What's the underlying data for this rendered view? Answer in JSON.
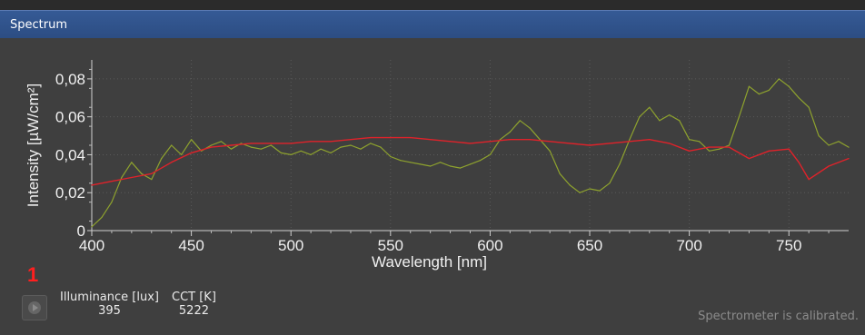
{
  "panel": {
    "title": "Spectrum"
  },
  "metrics": [
    {
      "label": "Illuminance [lux]",
      "value": "395"
    },
    {
      "label": "CCT [K]",
      "value": "5222"
    }
  ],
  "marker_label": "1",
  "status": "Spectrometer is calibrated.",
  "colors": {
    "title_bar": "#2f5189",
    "background": "#3f3f3f",
    "series_measured": "#8ea22e",
    "series_reference": "#e0222a",
    "marker": "#ff1f1f"
  },
  "chart_data": {
    "type": "line",
    "xlabel": "Wavelength [nm]",
    "ylabel": "Intensity [µW/cm²]",
    "xlim": [
      400,
      780
    ],
    "ylim": [
      0,
      0.09
    ],
    "x_ticks": [
      "400",
      "450",
      "500",
      "550",
      "600",
      "650",
      "700",
      "750"
    ],
    "y_ticks": [
      "0",
      "0,02",
      "0,04",
      "0,06",
      "0,08"
    ],
    "grid": true,
    "series": [
      {
        "color": "#8ea22e",
        "x": [
          400,
          405,
          410,
          415,
          420,
          425,
          430,
          435,
          440,
          445,
          450,
          455,
          460,
          465,
          470,
          475,
          480,
          485,
          490,
          495,
          500,
          505,
          510,
          515,
          520,
          525,
          530,
          535,
          540,
          545,
          550,
          555,
          560,
          565,
          570,
          575,
          580,
          585,
          590,
          595,
          600,
          605,
          610,
          615,
          620,
          625,
          630,
          635,
          640,
          645,
          650,
          655,
          660,
          665,
          670,
          675,
          680,
          685,
          690,
          695,
          700,
          705,
          710,
          715,
          720,
          725,
          730,
          735,
          740,
          745,
          750,
          755,
          760,
          765,
          770,
          775,
          780
        ],
        "y": [
          0.002,
          0.007,
          0.015,
          0.028,
          0.036,
          0.03,
          0.027,
          0.038,
          0.045,
          0.04,
          0.048,
          0.042,
          0.045,
          0.047,
          0.043,
          0.046,
          0.044,
          0.043,
          0.045,
          0.041,
          0.04,
          0.042,
          0.04,
          0.043,
          0.041,
          0.044,
          0.045,
          0.043,
          0.046,
          0.044,
          0.039,
          0.037,
          0.036,
          0.035,
          0.034,
          0.036,
          0.034,
          0.033,
          0.035,
          0.037,
          0.04,
          0.048,
          0.052,
          0.058,
          0.054,
          0.048,
          0.042,
          0.03,
          0.024,
          0.02,
          0.022,
          0.021,
          0.025,
          0.035,
          0.048,
          0.06,
          0.065,
          0.058,
          0.061,
          0.058,
          0.048,
          0.047,
          0.042,
          0.043,
          0.045,
          0.06,
          0.076,
          0.072,
          0.074,
          0.08,
          0.076,
          0.07,
          0.065,
          0.05,
          0.045,
          0.047,
          0.044
        ]
      },
      {
        "color": "#e0222a",
        "x": [
          400,
          410,
          420,
          430,
          440,
          450,
          460,
          470,
          480,
          490,
          500,
          510,
          520,
          530,
          540,
          550,
          560,
          570,
          580,
          590,
          600,
          610,
          620,
          630,
          640,
          650,
          660,
          670,
          680,
          690,
          700,
          710,
          720,
          730,
          740,
          750,
          755,
          760,
          770,
          780
        ],
        "y": [
          0.024,
          0.026,
          0.028,
          0.03,
          0.036,
          0.041,
          0.044,
          0.045,
          0.046,
          0.046,
          0.046,
          0.047,
          0.047,
          0.048,
          0.049,
          0.049,
          0.049,
          0.048,
          0.047,
          0.046,
          0.047,
          0.048,
          0.048,
          0.047,
          0.046,
          0.045,
          0.046,
          0.047,
          0.048,
          0.046,
          0.042,
          0.044,
          0.044,
          0.038,
          0.042,
          0.043,
          0.036,
          0.027,
          0.034,
          0.038
        ]
      }
    ]
  }
}
